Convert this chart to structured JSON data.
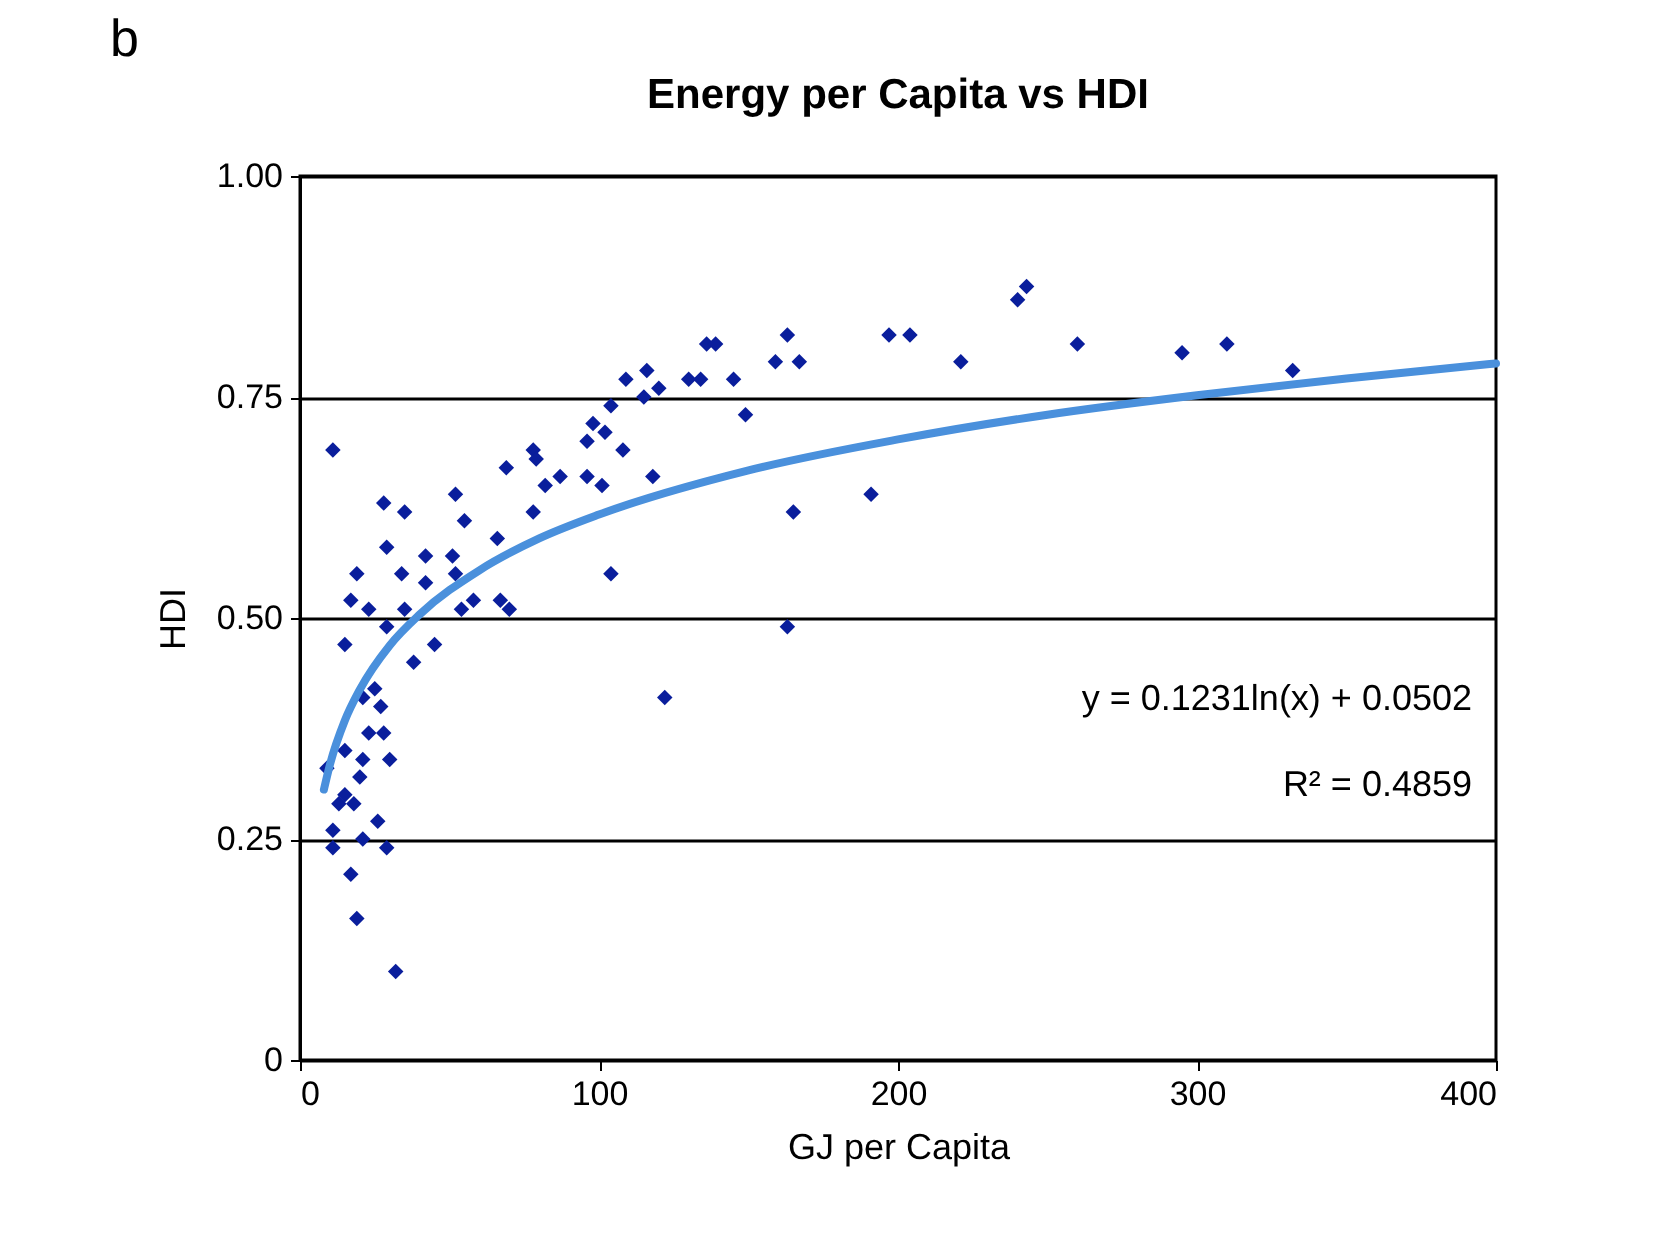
{
  "chart_data": {
    "type": "scatter",
    "title": "Energy per Capita vs HDI",
    "xlabel": "GJ per Capita",
    "ylabel": "HDI",
    "annotations": [
      "b",
      "y = 0.1231ln(x) + 0.0502",
      "R² = 0.4859"
    ],
    "xlim": [
      0,
      400
    ],
    "xticks": [
      0,
      100,
      200,
      300,
      400
    ],
    "ylim": [
      0,
      1
    ],
    "yticks": [
      0,
      0.25,
      {
        "value": 0.5,
        "label": "0.50"
      },
      0.75,
      {
        "value": 1,
        "label": "1.00"
      }
    ],
    "grid": "y",
    "series": [
      {
        "type": "scatter",
        "marker": "diamond",
        "color": "#0a1e9c",
        "x": [
          11,
          28,
          35,
          29,
          34,
          42,
          42,
          19,
          17,
          23,
          29,
          35,
          15,
          38,
          45,
          25,
          27,
          21,
          28,
          23,
          15,
          21,
          30,
          9,
          20,
          15,
          18,
          13,
          26,
          11,
          21,
          29,
          11,
          17,
          19,
          32,
          52,
          55,
          51,
          52,
          66,
          69,
          78,
          78,
          54,
          58,
          67,
          70,
          136,
          139,
          163,
          159,
          167,
          197,
          204,
          221,
          109,
          116,
          120,
          115,
          130,
          134,
          145,
          149,
          104,
          98,
          96,
          102,
          108,
          118,
          96,
          101,
          79,
          87,
          82,
          191,
          165,
          104,
          163,
          122,
          240,
          243,
          260,
          295,
          310,
          332
        ],
        "values": [
          0.69,
          0.63,
          0.62,
          0.58,
          0.55,
          0.57,
          0.54,
          0.55,
          0.52,
          0.51,
          0.49,
          0.51,
          0.47,
          0.45,
          0.47,
          0.42,
          0.4,
          0.41,
          0.37,
          0.37,
          0.35,
          0.34,
          0.34,
          0.33,
          0.32,
          0.3,
          0.29,
          0.29,
          0.27,
          0.26,
          0.25,
          0.24,
          0.24,
          0.21,
          0.16,
          0.1,
          0.64,
          0.61,
          0.57,
          0.55,
          0.59,
          0.67,
          0.69,
          0.62,
          0.51,
          0.52,
          0.52,
          0.51,
          0.81,
          0.81,
          0.82,
          0.79,
          0.79,
          0.82,
          0.82,
          0.79,
          0.77,
          0.78,
          0.76,
          0.75,
          0.77,
          0.77,
          0.77,
          0.73,
          0.74,
          0.72,
          0.7,
          0.71,
          0.69,
          0.66,
          0.66,
          0.65,
          0.68,
          0.66,
          0.65,
          0.64,
          0.62,
          0.55,
          0.49,
          0.41,
          0.86,
          0.875,
          0.81,
          0.8,
          0.81,
          0.78
        ]
      },
      {
        "type": "line",
        "line_style": "solid",
        "color": "#4a90dc",
        "x": [
          8,
          10,
          15,
          20,
          30,
          40,
          60,
          80,
          100,
          150,
          200,
          250,
          300,
          350,
          400
        ],
        "values": [
          0.306,
          0.334,
          0.384,
          0.419,
          0.469,
          0.504,
          0.554,
          0.59,
          0.617,
          0.667,
          0.702,
          0.73,
          0.752,
          0.771,
          0.788
        ]
      }
    ]
  }
}
